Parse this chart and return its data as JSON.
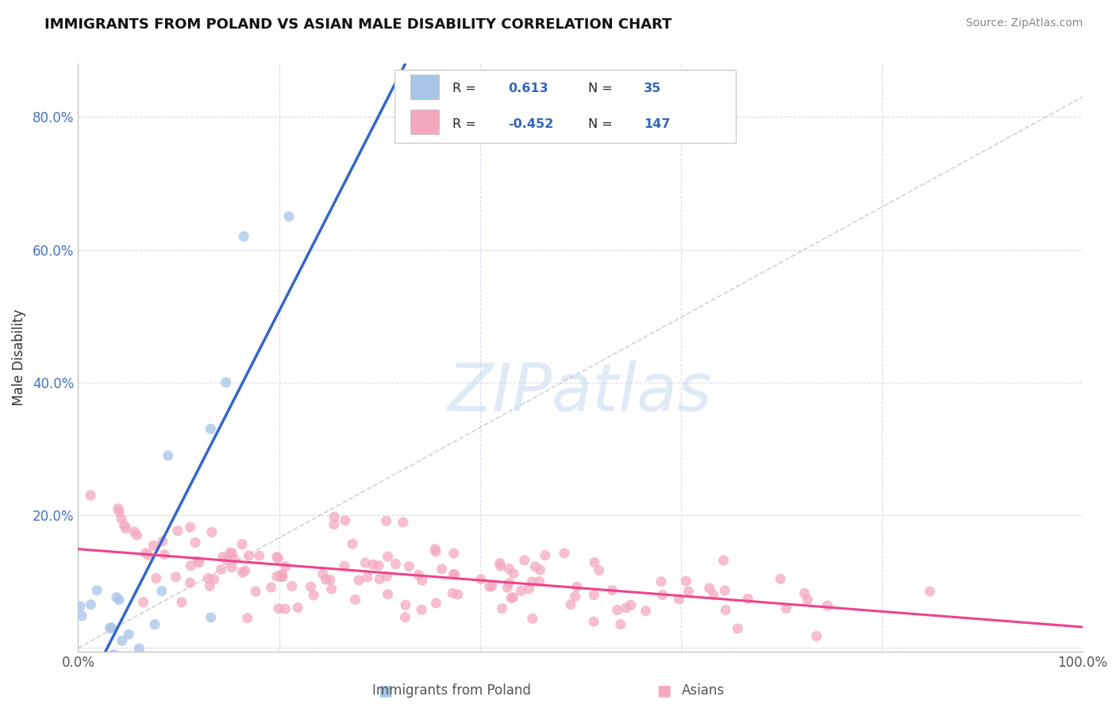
{
  "title": "IMMIGRANTS FROM POLAND VS ASIAN MALE DISABILITY CORRELATION CHART",
  "source": "Source: ZipAtlas.com",
  "ylabel": "Male Disability",
  "watermark": "ZIPatlas",
  "xlim": [
    0.0,
    1.0
  ],
  "ylim": [
    -0.005,
    0.88
  ],
  "xticks": [
    0.0,
    0.2,
    0.4,
    0.6,
    0.8,
    1.0
  ],
  "xticklabels": [
    "0.0%",
    "",
    "",
    "",
    "",
    "100.0%"
  ],
  "yticks": [
    0.0,
    0.2,
    0.4,
    0.6,
    0.8
  ],
  "yticklabels": [
    "",
    "20.0%",
    "40.0%",
    "60.0%",
    "80.0%"
  ],
  "legend1_R": "0.613",
  "legend1_N": "35",
  "legend2_R": "-0.452",
  "legend2_N": "147",
  "blue_color": "#A8C4E8",
  "pink_color": "#F4A8BE",
  "blue_line_color": "#3366CC",
  "pink_line_color": "#EE4488",
  "diag_line_color": "#C8C8C8",
  "grid_color": "#DADAEC"
}
